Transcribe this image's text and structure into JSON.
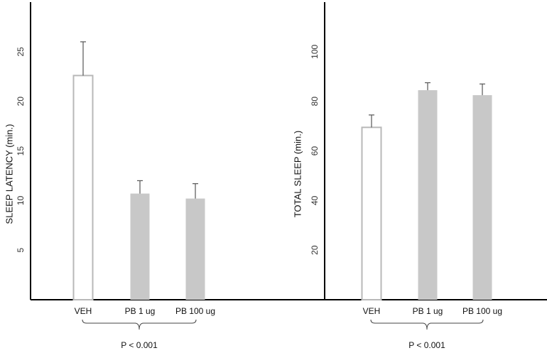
{
  "chart_data": [
    {
      "type": "bar",
      "categories": [
        "VEH",
        "PB 1 ug",
        "PB 100 ug"
      ],
      "values": [
        22.6,
        10.7,
        10.2
      ],
      "error_bars": [
        3.4,
        1.3,
        1.5
      ],
      "bar_styles": [
        "outline",
        "filled",
        "filled"
      ],
      "ylabel": "SLEEP  LATENCY  (min.)",
      "ylim": [
        0,
        30
      ],
      "yticks": [
        5,
        10,
        15,
        20,
        25
      ],
      "annotation": "P < 0.001"
    },
    {
      "type": "bar",
      "categories": [
        "VEH",
        "PB 1 ug",
        "PB 100 ug"
      ],
      "values": [
        69.5,
        84.5,
        82.5
      ],
      "error_bars": [
        5.0,
        3.0,
        4.5
      ],
      "bar_styles": [
        "outline",
        "filled",
        "filled"
      ],
      "ylabel": "TOTAL  SLEEP   (min.)",
      "ylim": [
        0,
        120
      ],
      "yticks": [
        20,
        40,
        60,
        80,
        100
      ],
      "annotation": "P < 0.001"
    }
  ],
  "colors": {
    "bar_fill": "#c8c8c8",
    "outline_bar": "#b8b8b8",
    "axis": "#000000",
    "error": "#555555"
  }
}
